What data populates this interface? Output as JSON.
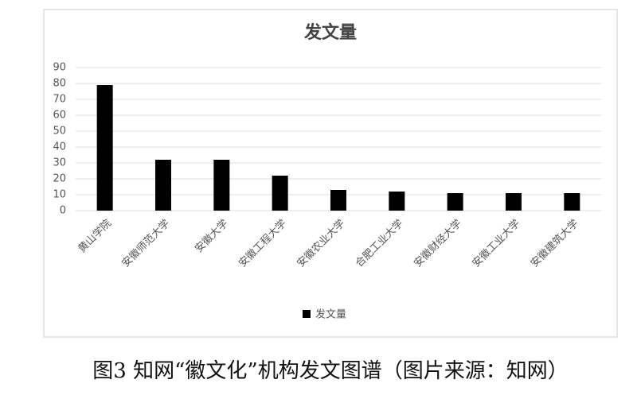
{
  "chart_data": {
    "type": "bar",
    "title": "发文量",
    "categories": [
      "黄山学院",
      "安徽师范大学",
      "安徽大学",
      "安徽工程大学",
      "安徽农业大学",
      "合肥工业大学",
      "安徽财经大学",
      "安徽工业大学",
      "安徽建筑大学"
    ],
    "series": [
      {
        "name": "发文量",
        "color": "#000000",
        "values": [
          79,
          32,
          32,
          22,
          13,
          12,
          11,
          11,
          11
        ]
      }
    ],
    "ylim": [
      0,
      90
    ],
    "yticks": [
      0,
      10,
      20,
      30,
      40,
      50,
      60,
      70,
      80,
      90
    ],
    "grid": true,
    "legend": "bottom"
  },
  "caption": "图3 知网“徽文化”机构发文图谱（图片来源：知网）"
}
